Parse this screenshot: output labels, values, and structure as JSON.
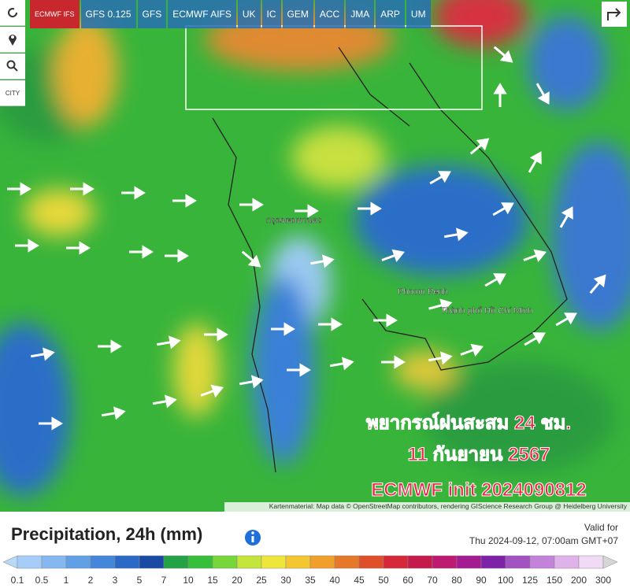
{
  "toolbar": {
    "models": [
      "ECMWF IFS",
      "GFS 0.125",
      "GFS",
      "ECMWF AIFS",
      "UK",
      "IC",
      "GEM",
      "ACC",
      "JMA",
      "ARP",
      "UM"
    ],
    "active": "ECMWF IFS"
  },
  "sidebar": {
    "city_label": "CITY"
  },
  "map": {
    "places": [
      "กรุงเทพมหานคร",
      "Phnom Penh",
      "Thành phố Hồ Chí Minh"
    ],
    "overlay": [
      "พยากรณ์ฝนสะสม 24 ชม.",
      "11 กันยายน 2567",
      "ECMWF init 2024090812"
    ],
    "attribution": "Kartenmaterial: Map data © OpenStreetMap contributors, rendering GIScience Research Group @ Heidelberg University"
  },
  "legend": {
    "title": "Precipitation, 24h (mm)",
    "valid_label": "Valid for",
    "valid_time": "Thu 2024-09-12, 07:00am GMT+07",
    "ticks": [
      0.1,
      0.5,
      1,
      2,
      3,
      5,
      7,
      10,
      15,
      20,
      25,
      30,
      35,
      40,
      45,
      50,
      60,
      70,
      80,
      90,
      100,
      125,
      150,
      200,
      300
    ],
    "colors": [
      "#b7d8f6",
      "#a6cdf7",
      "#85b8f0",
      "#62a0e6",
      "#4386da",
      "#2b69c6",
      "#1a4aa4",
      "#23a346",
      "#37be3a",
      "#76d63a",
      "#c4e63c",
      "#efe63b",
      "#f4c731",
      "#ef9f2a",
      "#e67829",
      "#de4f2a",
      "#d62838",
      "#c41a4c",
      "#bd1a72",
      "#a51b92",
      "#7e22a8",
      "#a253c2",
      "#c283d8",
      "#dfb2ec",
      "#f0daf5",
      "#d6d6d6"
    ]
  }
}
